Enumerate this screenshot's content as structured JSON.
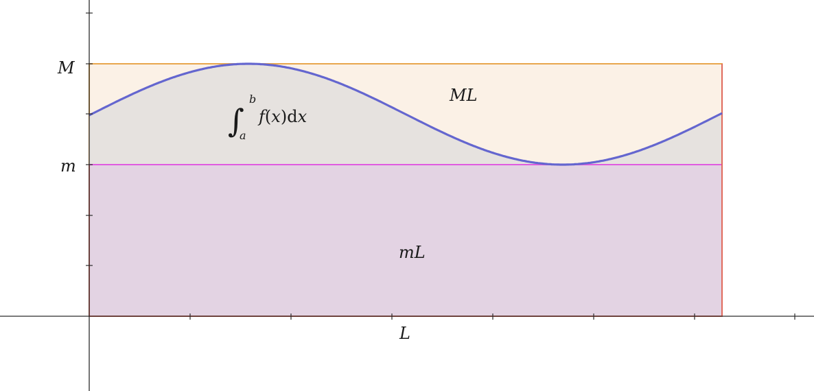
{
  "colors": {
    "axis": "#2b2b2b",
    "upper_rect_fill": "#fbf1e6",
    "upper_rect_stroke": "#e8a64c",
    "lower_rect_fill": "#e3d3e3",
    "lower_rect_stroke": "#e06a5c",
    "min_line": "#e05ce0",
    "curve": "#6466cf",
    "under_curve_fill": "#e6e2df"
  },
  "labels": {
    "y_max": "M",
    "y_min": "m",
    "x_length": "L",
    "upper_area": "ML",
    "lower_area": "mL",
    "integral_lower": "a",
    "integral_upper": "b",
    "integral_sign": "∫",
    "integrand_f": "f",
    "integrand_paren_open": "(",
    "integrand_x": "x",
    "integrand_paren_close": ")",
    "integrand_d": "d",
    "integrand_dx_var": "x"
  },
  "chart_data": {
    "type": "area",
    "curve": "sinusoid between m and M across length L",
    "ylim_levels": [
      "m",
      "M"
    ]
  }
}
